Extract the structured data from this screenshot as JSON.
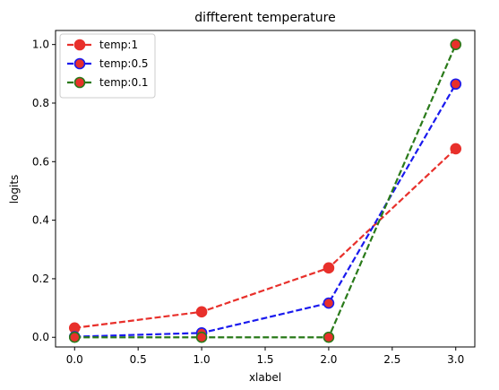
{
  "chart_data": {
    "type": "line",
    "title": "diffterent temperature",
    "xlabel": "xlabel",
    "ylabel": "logits",
    "x": [
      0,
      1,
      2,
      3
    ],
    "xlim": [
      -0.15,
      3.15
    ],
    "ylim": [
      -0.033,
      1.048
    ],
    "xticks": [
      0.0,
      0.5,
      1.0,
      1.5,
      2.0,
      2.5,
      3.0
    ],
    "xtick_labels": [
      "0.0",
      "0.5",
      "1.0",
      "1.5",
      "2.0",
      "2.5",
      "3.0"
    ],
    "yticks": [
      0.0,
      0.2,
      0.4,
      0.6,
      0.8,
      1.0
    ],
    "ytick_labels": [
      "0.0",
      "0.2",
      "0.4",
      "0.6",
      "0.8",
      "1.0"
    ],
    "grid": false,
    "legend_position": "top-left",
    "series": [
      {
        "name": "temp:1",
        "values": [
          0.032,
          0.087,
          0.237,
          0.644
        ],
        "color": "#e8302b",
        "marker_face": "#e8302b",
        "marker_edge": "#e8302b",
        "linestyle": "dashed"
      },
      {
        "name": "temp:0.5",
        "values": [
          0.002,
          0.015,
          0.117,
          0.865
        ],
        "color": "#1a1aee",
        "marker_face": "#e8302b",
        "marker_edge": "#1a1aee",
        "linestyle": "dashed"
      },
      {
        "name": "temp:0.1",
        "values": [
          0.0,
          0.0,
          0.0,
          1.0
        ],
        "color": "#2a7a1a",
        "marker_face": "#e8302b",
        "marker_edge": "#2a7a1a",
        "linestyle": "dashed"
      }
    ]
  }
}
